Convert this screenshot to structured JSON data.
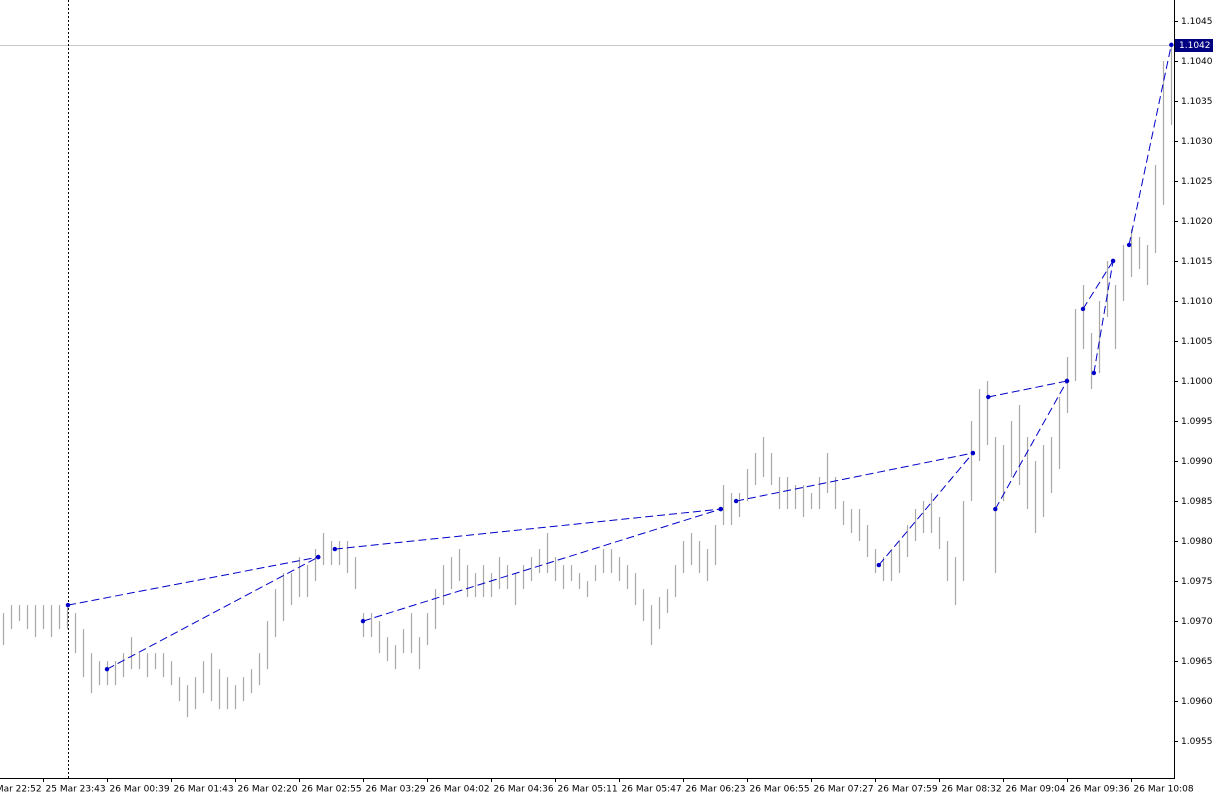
{
  "chart_data": {
    "type": "ohlc",
    "xlim": [
      0.328,
      18.672
    ],
    "ylim": [
      1.09504,
      1.10476
    ],
    "xticks": [
      {
        "value": 0,
        "label": "25 Mar 22:52"
      },
      {
        "value": 1,
        "label": "25 Mar 23:43"
      },
      {
        "value": 2,
        "label": "26 Mar 00:39"
      },
      {
        "value": 3,
        "label": "26 Mar 01:43"
      },
      {
        "value": 4,
        "label": "26 Mar 02:20"
      },
      {
        "value": 5,
        "label": "26 Mar 02:55"
      },
      {
        "value": 6,
        "label": "26 Mar 03:29"
      },
      {
        "value": 7,
        "label": "26 Mar 04:02"
      },
      {
        "value": 8,
        "label": "26 Mar 04:36"
      },
      {
        "value": 9,
        "label": "26 Mar 05:11"
      },
      {
        "value": 10,
        "label": "26 Mar 05:47"
      },
      {
        "value": 11,
        "label": "26 Mar 06:23"
      },
      {
        "value": 12,
        "label": "26 Mar 06:55"
      },
      {
        "value": 13,
        "label": "26 Mar 07:27"
      },
      {
        "value": 14,
        "label": "26 Mar 07:59"
      },
      {
        "value": 15,
        "label": "26 Mar 08:32"
      },
      {
        "value": 16,
        "label": "26 Mar 09:04"
      },
      {
        "value": 17,
        "label": "26 Mar 09:36"
      },
      {
        "value": 18,
        "label": "26 Mar 10:08"
      }
    ],
    "yticks": [
      1.0955,
      {
        "value": 1.096,
        "label": "1.0960"
      },
      1.0965,
      {
        "value": 1.097,
        "label": "1.0970"
      },
      1.0975,
      {
        "value": 1.098,
        "label": "1.0980"
      },
      1.0985,
      {
        "value": 1.099,
        "label": "1.0990"
      },
      1.0995,
      {
        "value": 1.1,
        "label": "1.1000"
      },
      1.1005,
      {
        "value": 1.101,
        "label": "1.1010"
      },
      1.1015,
      {
        "value": 1.102,
        "label": "1.1020"
      },
      1.1025,
      {
        "value": 1.103,
        "label": "1.1030"
      },
      1.1035,
      {
        "value": 1.104,
        "label": "1.1040"
      },
      1.1045
    ],
    "bars": {
      "color": "#a8a8a8",
      "x": [
        0.375,
        0.5,
        0.625,
        0.75,
        0.875,
        1,
        1.125,
        1.25,
        1.375,
        1.5,
        1.625,
        1.75,
        1.875,
        2,
        2.125,
        2.25,
        2.375,
        2.5,
        2.625,
        2.75,
        2.875,
        3,
        3.125,
        3.25,
        3.375,
        3.5,
        3.625,
        3.75,
        3.875,
        4,
        4.125,
        4.25,
        4.375,
        4.5,
        4.625,
        4.75,
        4.875,
        5,
        5.125,
        5.25,
        5.375,
        5.5,
        5.625,
        5.75,
        5.875,
        6,
        6.125,
        6.25,
        6.375,
        6.5,
        6.625,
        6.75,
        6.875,
        7,
        7.125,
        7.25,
        7.375,
        7.5,
        7.625,
        7.75,
        7.875,
        8,
        8.125,
        8.25,
        8.375,
        8.5,
        8.625,
        8.75,
        8.875,
        9,
        9.125,
        9.25,
        9.375,
        9.5,
        9.625,
        9.75,
        9.875,
        10,
        10.125,
        10.25,
        10.375,
        10.5,
        10.625,
        10.75,
        10.875,
        11,
        11.125,
        11.25,
        11.375,
        11.5,
        11.625,
        11.75,
        11.875,
        12,
        12.125,
        12.25,
        12.375,
        12.5,
        12.625,
        12.75,
        12.875,
        13,
        13.125,
        13.25,
        13.375,
        13.5,
        13.625,
        13.75,
        13.875,
        14,
        14.125,
        14.25,
        14.375,
        14.5,
        14.625,
        14.75,
        14.875,
        15,
        15.125,
        15.25,
        15.375,
        15.5,
        15.625,
        15.75,
        15.875,
        16,
        16.125,
        16.25,
        16.375,
        16.5,
        16.625,
        16.75,
        16.875,
        17,
        17.125,
        17.25,
        17.375,
        17.5,
        17.625,
        17.75,
        17.875,
        18,
        18.125,
        18.25,
        18.375,
        18.5,
        18.625
      ],
      "high": [
        1.0971,
        1.0972,
        1.0972,
        1.0972,
        1.0972,
        1.0972,
        1.0972,
        1.0972,
        1.0972,
        1.0971,
        1.0969,
        1.0966,
        1.0965,
        1.0965,
        1.0965,
        1.0966,
        1.0968,
        1.0966,
        1.0966,
        1.0966,
        1.0966,
        1.0965,
        1.0963,
        1.0962,
        1.0963,
        1.0965,
        1.0966,
        1.0964,
        1.0963,
        1.0962,
        1.0963,
        1.0964,
        1.0966,
        1.097,
        1.0974,
        1.0976,
        1.0976,
        1.0978,
        1.0977,
        1.0979,
        1.0981,
        1.098,
        1.098,
        1.098,
        1.0978,
        1.0971,
        1.0971,
        1.097,
        1.0968,
        1.0967,
        1.0969,
        1.0971,
        1.0968,
        1.0971,
        1.0974,
        1.0977,
        1.0978,
        1.0979,
        1.0977,
        1.0976,
        1.0977,
        1.0976,
        1.0978,
        1.0977,
        1.0976,
        1.0977,
        1.0978,
        1.0979,
        1.0981,
        1.0978,
        1.0977,
        1.0977,
        1.0976,
        1.0975,
        1.0977,
        1.0979,
        1.0979,
        1.0978,
        1.0977,
        1.0976,
        1.0974,
        1.0972,
        1.0973,
        1.0974,
        1.0977,
        1.098,
        1.0981,
        1.098,
        1.0979,
        1.0982,
        1.0987,
        1.0986,
        1.0986,
        1.0989,
        1.0991,
        1.0993,
        1.0991,
        1.0988,
        1.0988,
        1.0987,
        1.0987,
        1.0986,
        1.0988,
        1.0991,
        1.0988,
        1.0985,
        1.0984,
        1.0984,
        1.0982,
        1.0979,
        1.0978,
        1.0979,
        1.098,
        1.0982,
        1.0984,
        1.0985,
        1.0986,
        1.0983,
        1.098,
        1.0978,
        1.0985,
        1.0995,
        1.0999,
        1.1,
        1.0993,
        1.0992,
        1.0995,
        1.0997,
        1.0993,
        1.099,
        1.0992,
        1.0993,
        1.0998,
        1.1003,
        1.1009,
        1.1012,
        1.1006,
        1.101,
        1.1015,
        1.1012,
        1.1017,
        1.1019,
        1.1018,
        1.1017,
        1.1027,
        1.104,
        1.1042
      ],
      "low": [
        1.0967,
        1.0969,
        1.097,
        1.0969,
        1.0968,
        1.0969,
        1.0968,
        1.0969,
        1.0969,
        1.0966,
        1.0963,
        1.0961,
        1.0962,
        1.0962,
        1.0962,
        1.0963,
        1.0964,
        1.0964,
        1.0963,
        1.0964,
        1.0963,
        1.0962,
        1.096,
        1.0958,
        1.0959,
        1.0961,
        1.096,
        1.0959,
        1.0959,
        1.0959,
        1.096,
        1.0961,
        1.0962,
        1.0964,
        1.0968,
        1.097,
        1.0972,
        1.0973,
        1.0973,
        1.0975,
        1.0977,
        1.0977,
        1.0977,
        1.0976,
        1.0974,
        1.0968,
        1.0968,
        1.0966,
        1.0965,
        1.0964,
        1.0966,
        1.0966,
        1.0964,
        1.0967,
        1.0969,
        1.0972,
        1.0974,
        1.0975,
        1.0973,
        1.0973,
        1.0973,
        1.0973,
        1.0974,
        1.0974,
        1.0972,
        1.0974,
        1.0975,
        1.0976,
        1.0976,
        1.0975,
        1.0974,
        1.0975,
        1.0974,
        1.0973,
        1.0975,
        1.0976,
        1.0976,
        1.0975,
        1.0974,
        1.0972,
        1.097,
        1.0967,
        1.0969,
        1.0971,
        1.0973,
        1.0976,
        1.0977,
        1.0976,
        1.0975,
        1.0977,
        1.0982,
        1.0982,
        1.0983,
        1.0985,
        1.0987,
        1.0988,
        1.0987,
        1.0984,
        1.0984,
        1.0984,
        1.0983,
        1.0984,
        1.0984,
        1.0986,
        1.0984,
        1.0982,
        1.0981,
        1.098,
        1.0978,
        1.0976,
        1.0975,
        1.0975,
        1.0976,
        1.0978,
        1.098,
        1.0981,
        1.0981,
        1.0979,
        1.0975,
        1.0972,
        1.0975,
        1.0985,
        1.099,
        1.0992,
        1.0976,
        1.0985,
        1.0988,
        1.0987,
        1.0984,
        1.0981,
        1.0983,
        1.0986,
        1.0989,
        1.0996,
        1.1,
        1.1004,
        1.0999,
        1.1001,
        1.1008,
        1.1004,
        1.101,
        1.1013,
        1.1014,
        1.1012,
        1.1016,
        1.1022,
        1.1032
      ]
    },
    "line_color": "#0000c8",
    "lines": [
      {
        "x": [
          1.39,
          5.3
        ],
        "y": [
          1.0972,
          1.0978
        ]
      },
      {
        "x": [
          2,
          5.3
        ],
        "y": [
          1.0964,
          1.0978
        ]
      },
      {
        "x": [
          5.56,
          11.59
        ],
        "y": [
          1.0979,
          1.0984
        ]
      },
      {
        "x": [
          6,
          11.59
        ],
        "y": [
          1.097,
          1.0984
        ]
      },
      {
        "x": [
          11.83,
          15.53
        ],
        "y": [
          1.0985,
          1.0991
        ]
      },
      {
        "x": [
          14.06,
          15.53
        ],
        "y": [
          1.0977,
          1.0991
        ]
      },
      {
        "x": [
          15.77,
          17
        ],
        "y": [
          1.0998,
          1.1
        ]
      },
      {
        "x": [
          15.88,
          17
        ],
        "y": [
          1.0984,
          1.1
        ]
      },
      {
        "x": [
          17.25,
          17.72
        ],
        "y": [
          1.1009,
          1.1015
        ]
      },
      {
        "x": [
          17.42,
          17.72
        ],
        "y": [
          1.1001,
          1.1015
        ]
      },
      {
        "x": [
          17.97,
          18.63
        ],
        "y": [
          1.1017,
          1.1042
        ]
      }
    ],
    "crosshair_x": 1.39,
    "price_line": {
      "value": 1.1042,
      "color": "#000080"
    }
  }
}
